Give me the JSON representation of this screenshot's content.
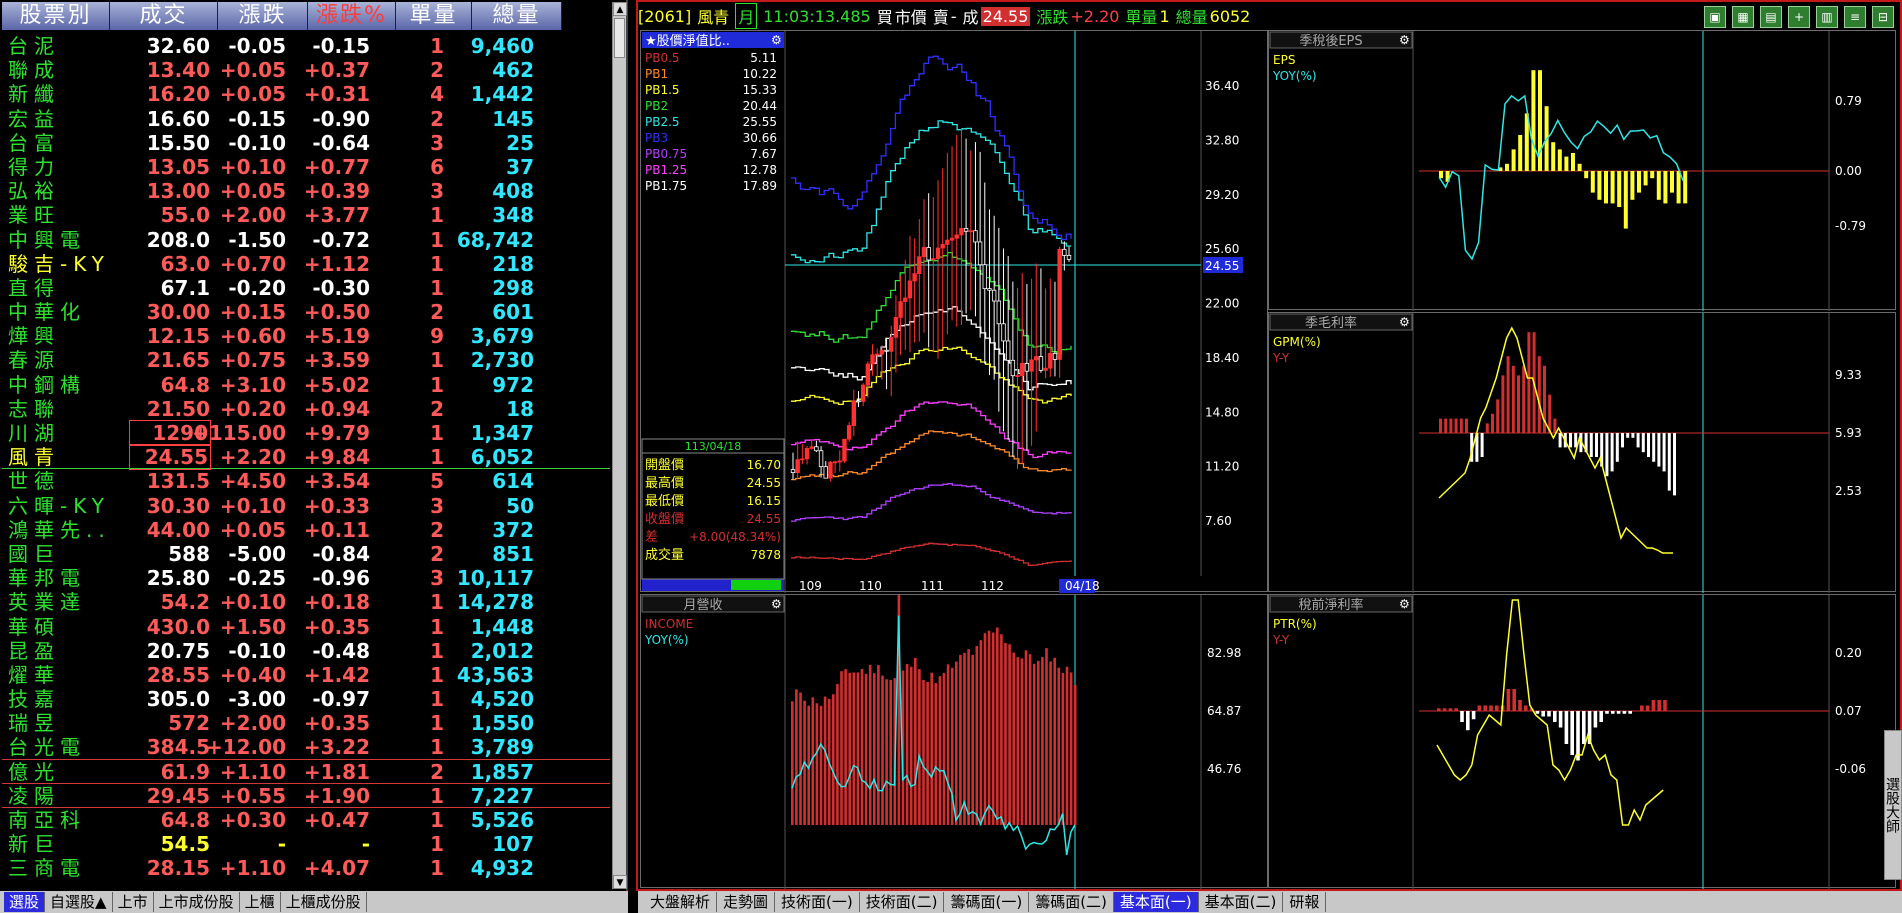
{
  "quote_table": {
    "headers": [
      "股票別",
      "成交",
      "漲跌",
      "漲跌%",
      "單量",
      "總量"
    ],
    "rows": [
      {
        "name": "台泥",
        "price": "32.60",
        "chg": "-0.05",
        "pct": "-0.15",
        "vol": "1",
        "total": "9,460",
        "color": "white"
      },
      {
        "name": "聯成",
        "price": "13.40",
        "chg": "+0.05",
        "pct": "+0.37",
        "vol": "2",
        "total": "462",
        "color": "red"
      },
      {
        "name": "新纖",
        "price": "16.20",
        "chg": "+0.05",
        "pct": "+0.31",
        "vol": "4",
        "total": "1,442",
        "color": "red"
      },
      {
        "name": "宏益",
        "price": "16.60",
        "chg": "-0.15",
        "pct": "-0.90",
        "vol": "2",
        "total": "145",
        "color": "white"
      },
      {
        "name": "台富",
        "price": "15.50",
        "chg": "-0.10",
        "pct": "-0.64",
        "vol": "3",
        "total": "25",
        "color": "white"
      },
      {
        "name": "得力",
        "price": "13.05",
        "chg": "+0.10",
        "pct": "+0.77",
        "vol": "6",
        "total": "37",
        "color": "red"
      },
      {
        "name": "弘裕",
        "price": "13.00",
        "chg": "+0.05",
        "pct": "+0.39",
        "vol": "3",
        "total": "408",
        "color": "red"
      },
      {
        "name": "業旺",
        "price": "55.0",
        "chg": "+2.00",
        "pct": "+3.77",
        "vol": "1",
        "total": "348",
        "color": "red"
      },
      {
        "name": "中興電",
        "price": "208.0",
        "chg": "-1.50",
        "pct": "-0.72",
        "vol": "1",
        "total": "68,742",
        "color": "white"
      },
      {
        "name": "駿吉-KY",
        "price": "63.0",
        "chg": "+0.70",
        "pct": "+1.12",
        "vol": "1",
        "total": "218",
        "color": "red",
        "name_color": "yellow"
      },
      {
        "name": "直得",
        "price": "67.1",
        "chg": "-0.20",
        "pct": "-0.30",
        "vol": "1",
        "total": "298",
        "color": "white"
      },
      {
        "name": "中華化",
        "price": "30.00",
        "chg": "+0.15",
        "pct": "+0.50",
        "vol": "2",
        "total": "601",
        "color": "red"
      },
      {
        "name": "燁興",
        "price": "12.15",
        "chg": "+0.60",
        "pct": "+5.19",
        "vol": "9",
        "total": "3,679",
        "color": "red"
      },
      {
        "name": "春源",
        "price": "21.65",
        "chg": "+0.75",
        "pct": "+3.59",
        "vol": "1",
        "total": "2,730",
        "color": "red"
      },
      {
        "name": "中鋼構",
        "price": "64.8",
        "chg": "+3.10",
        "pct": "+5.02",
        "vol": "1",
        "total": "972",
        "color": "red"
      },
      {
        "name": "志聯",
        "price": "21.50",
        "chg": "+0.20",
        "pct": "+0.94",
        "vol": "2",
        "total": "18",
        "color": "red"
      },
      {
        "name": "川湖",
        "price": "1290",
        "chg": "+115.00",
        "pct": "+9.79",
        "vol": "1",
        "total": "1,347",
        "color": "red",
        "boxed": true
      },
      {
        "name": "風青",
        "price": "24.55",
        "chg": "+2.20",
        "pct": "+9.84",
        "vol": "1",
        "total": "6,052",
        "color": "red",
        "boxed": true,
        "name_color": "yellow",
        "sep": "green"
      },
      {
        "name": "世德",
        "price": "131.5",
        "chg": "+4.50",
        "pct": "+3.54",
        "vol": "5",
        "total": "614",
        "color": "red"
      },
      {
        "name": "六暉-KY",
        "price": "30.30",
        "chg": "+0.10",
        "pct": "+0.33",
        "vol": "3",
        "total": "50",
        "color": "red"
      },
      {
        "name": "鴻華先..",
        "price": "44.00",
        "chg": "+0.05",
        "pct": "+0.11",
        "vol": "2",
        "total": "372",
        "color": "red"
      },
      {
        "name": "國巨",
        "price": "588",
        "chg": "-5.00",
        "pct": "-0.84",
        "vol": "2",
        "total": "851",
        "color": "white"
      },
      {
        "name": "華邦電",
        "price": "25.80",
        "chg": "-0.25",
        "pct": "-0.96",
        "vol": "3",
        "total": "10,117",
        "color": "white"
      },
      {
        "name": "英業達",
        "price": "54.2",
        "chg": "+0.10",
        "pct": "+0.18",
        "vol": "1",
        "total": "14,278",
        "color": "red"
      },
      {
        "name": "華碩",
        "price": "430.0",
        "chg": "+1.50",
        "pct": "+0.35",
        "vol": "1",
        "total": "1,448",
        "color": "red"
      },
      {
        "name": "昆盈",
        "price": "20.75",
        "chg": "-0.10",
        "pct": "-0.48",
        "vol": "1",
        "total": "2,012",
        "color": "white"
      },
      {
        "name": "燿華",
        "price": "28.55",
        "chg": "+0.40",
        "pct": "+1.42",
        "vol": "1",
        "total": "43,563",
        "color": "red"
      },
      {
        "name": "技嘉",
        "price": "305.0",
        "chg": "-3.00",
        "pct": "-0.97",
        "vol": "1",
        "total": "4,520",
        "color": "white"
      },
      {
        "name": "瑞昱",
        "price": "572",
        "chg": "+2.00",
        "pct": "+0.35",
        "vol": "1",
        "total": "1,550",
        "color": "red"
      },
      {
        "name": "台光電",
        "price": "384.5",
        "chg": "+12.00",
        "pct": "+3.22",
        "vol": "1",
        "total": "3,789",
        "color": "red",
        "sep": "red"
      },
      {
        "name": "億光",
        "price": "61.9",
        "chg": "+1.10",
        "pct": "+1.81",
        "vol": "2",
        "total": "1,857",
        "color": "red",
        "sep": "red"
      },
      {
        "name": "凌陽",
        "price": "29.45",
        "chg": "+0.55",
        "pct": "+1.90",
        "vol": "1",
        "total": "7,227",
        "color": "red",
        "sep": "red"
      },
      {
        "name": "南亞科",
        "price": "64.8",
        "chg": "+0.30",
        "pct": "+0.47",
        "vol": "1",
        "total": "5,526",
        "color": "red"
      },
      {
        "name": "新巨",
        "price": "54.5",
        "chg": "-",
        "pct": "-",
        "vol": "1",
        "total": "107",
        "color": "yellow"
      },
      {
        "name": "三商電",
        "price": "28.15",
        "chg": "+1.10",
        "pct": "+4.07",
        "vol": "1",
        "total": "4,932",
        "color": "red"
      }
    ]
  },
  "left_tabs": [
    "選股",
    "自選股▲",
    "上市",
    "上市成份股",
    "上櫃",
    "上櫃成份股"
  ],
  "topbar": {
    "code": "[2061]",
    "name": "風青",
    "period": "月",
    "time": "11:03:13.485",
    "bid_label": "買",
    "bid_value": "市價",
    "ask_label": "賣",
    "ask_value": "-",
    "trade_label": "成",
    "trade_value": "24.55",
    "chg_label": "漲跌",
    "chg_value": "+2.20",
    "vol_label": "單量",
    "vol_value": "1",
    "total_label": "總量",
    "total_value": "6052"
  },
  "toolbar_icons": [
    "window-icon",
    "red-box-icon",
    "book-icon",
    "add-panel-icon",
    "layout-icon",
    "list-icon",
    "expand-icon"
  ],
  "pb_panel": {
    "title": "★股價淨值比..",
    "legend": [
      {
        "label": "PB0.5",
        "value": "5.11",
        "color": "#d23030"
      },
      {
        "label": "PB1",
        "value": "10.22",
        "color": "#ff8a2a"
      },
      {
        "label": "PB1.5",
        "value": "15.33",
        "color": "#ffff30"
      },
      {
        "label": "PB2",
        "value": "20.44",
        "color": "#30e030"
      },
      {
        "label": "PB2.5",
        "value": "25.55",
        "color": "#30e6e6"
      },
      {
        "label": "PB3",
        "value": "30.66",
        "color": "#3030ff"
      },
      {
        "label": "PB0.75",
        "value": "7.67",
        "color": "#b040ff"
      },
      {
        "label": "PB1.25",
        "value": "12.78",
        "color": "#ff40ff"
      },
      {
        "label": "PB1.75",
        "value": "17.89",
        "color": "#ffffff"
      }
    ],
    "yticks": [
      "36.40",
      "32.80",
      "29.20",
      "25.60",
      "22.00",
      "18.40",
      "14.80",
      "11.20",
      "7.60"
    ],
    "current": "24.55",
    "xticks": [
      "109",
      "110",
      "111",
      "112",
      "04/18"
    ],
    "info_date": "113/04/18",
    "info": [
      {
        "label": "開盤價",
        "value": "16.70",
        "color": "#ffff30"
      },
      {
        "label": "最高價",
        "value": "24.55",
        "color": "#ffff30"
      },
      {
        "label": "最低價",
        "value": "16.15",
        "color": "#ffff30"
      },
      {
        "label": "收盤價",
        "value": "24.55",
        "color": "#d23030"
      },
      {
        "label": "差",
        "value": "+8.00(48.34%)",
        "color": "#d23030"
      },
      {
        "label": "成交量",
        "value": "7878",
        "color": "#ffff30"
      }
    ]
  },
  "eps_panel": {
    "title": "季稅後EPS",
    "legend": [
      {
        "label": "EPS",
        "color": "#ffff30"
      },
      {
        "label": "YOY(%)",
        "color": "#30e6e6"
      }
    ],
    "yticks": [
      "0.79",
      "0.00",
      "-0.79"
    ]
  },
  "gpm_panel": {
    "title": "季毛利率",
    "legend": [
      {
        "label": "GPM(%)",
        "color": "#ffff30"
      },
      {
        "label": "Y-Y",
        "color": "#d23030"
      }
    ],
    "yticks": [
      "9.33",
      "5.93",
      "2.53"
    ]
  },
  "rev_panel": {
    "title": "月營收",
    "legend": [
      {
        "label": "INCOME",
        "color": "#d23030"
      },
      {
        "label": "YOY(%)",
        "color": "#30e6e6"
      }
    ],
    "yticks": [
      "82.98",
      "64.87",
      "46.76"
    ]
  },
  "ptr_panel": {
    "title": "稅前淨利率",
    "legend": [
      {
        "label": "PTR(%)",
        "color": "#ffff30"
      },
      {
        "label": "Y-Y",
        "color": "#d23030"
      }
    ],
    "yticks": [
      "0.20",
      "0.07",
      "-0.06"
    ]
  },
  "right_tabs": [
    "大盤解析",
    "走勢圖",
    "技術面(一)",
    "技術面(二)",
    "籌碼面(一)",
    "籌碼面(二)",
    "基本面(一)",
    "基本面(二)",
    "研報"
  ],
  "active_right_tab": "基本面(一)",
  "side_tab": "選股大師"
}
